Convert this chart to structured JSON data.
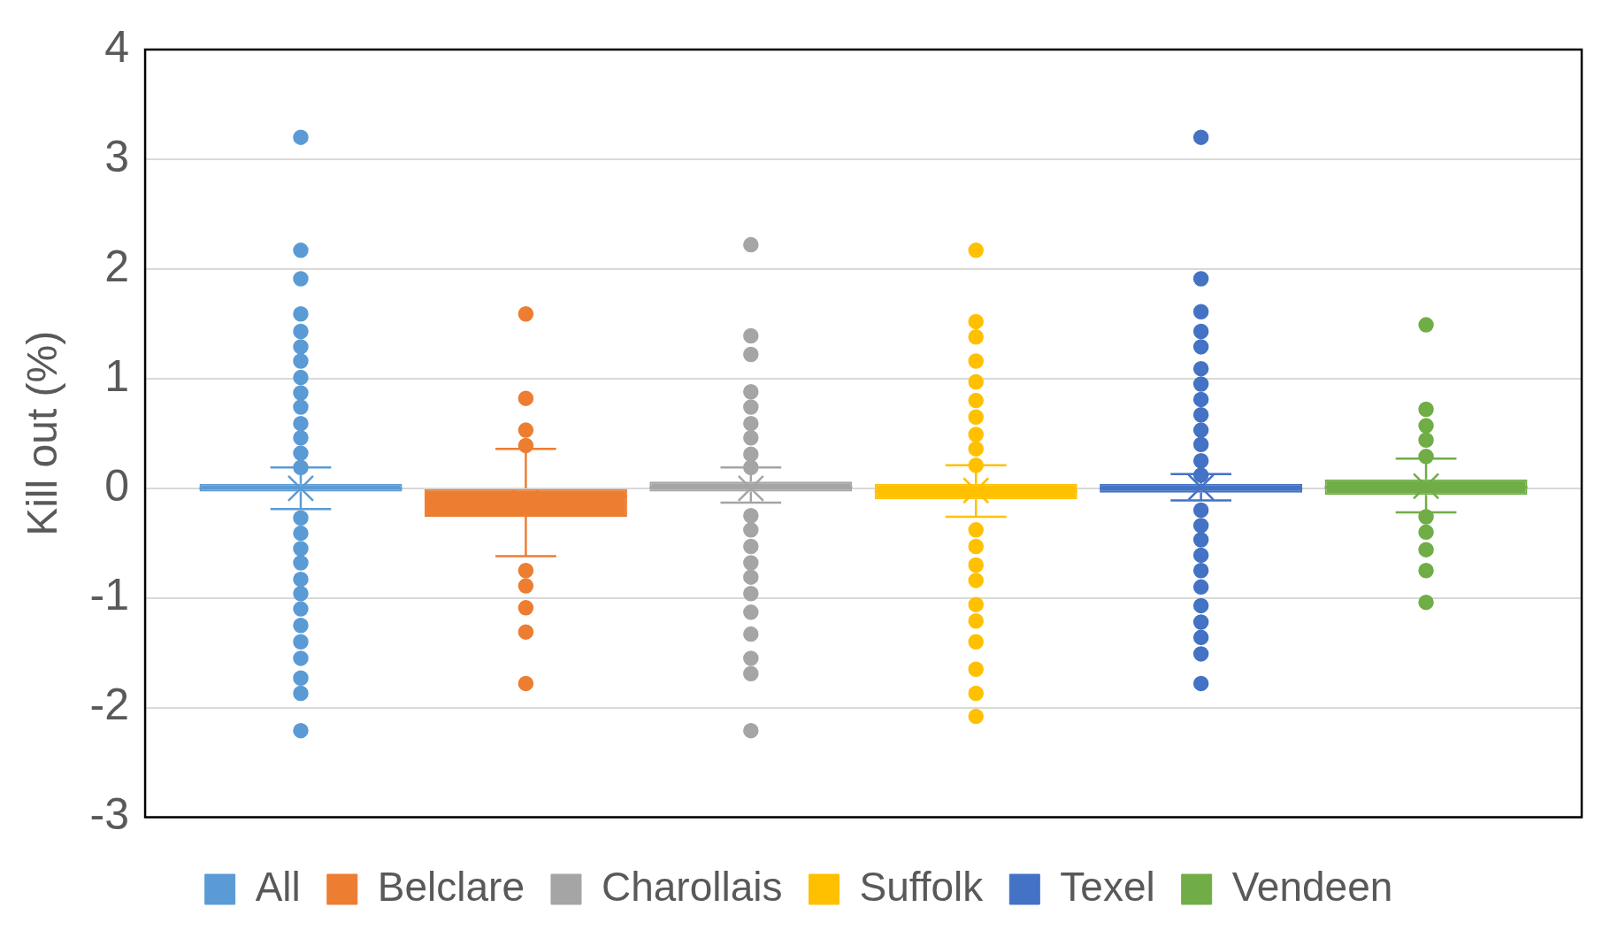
{
  "chart_data": {
    "type": "box",
    "ylabel": "Kill out (%)",
    "categories": [
      null
    ],
    "ylim": [
      -3,
      4
    ],
    "yticks": [
      -3,
      -2,
      -1,
      0,
      1,
      2,
      3,
      4
    ],
    "grid": "y",
    "legend": "bottom",
    "series": [
      {
        "name": "All",
        "color": "#5b9bd5",
        "boxes": [
          {
            "low": -0.19,
            "q1": -0.03,
            "median": 0,
            "q3": 0.04,
            "high": 0.19,
            "mean": 0,
            "outliers": [
              3.2,
              2.17,
              1.91,
              1.59,
              1.43,
              1.29,
              1.16,
              1.01,
              0.87,
              0.74,
              0.59,
              0.46,
              0.32,
              0.19,
              -0.27,
              -0.41,
              -0.55,
              -0.68,
              -0.83,
              -0.96,
              -1.1,
              -1.25,
              -1.4,
              -1.55,
              -1.73,
              -1.87,
              -2.21
            ]
          }
        ]
      },
      {
        "name": "Belclare",
        "color": "#ed7d31",
        "boxes": [
          {
            "low": -0.62,
            "q1": -0.26,
            "median": -0.07,
            "q3": 0,
            "high": 0.36,
            "mean": -0.13,
            "outliers": [
              1.59,
              0.82,
              0.53,
              0.39,
              -0.75,
              -0.89,
              -1.09,
              -1.31,
              -1.78
            ]
          }
        ]
      },
      {
        "name": "Charollais",
        "color": "#a5a5a5",
        "boxes": [
          {
            "low": -0.13,
            "q1": -0.03,
            "median": 0.01,
            "q3": 0.06,
            "high": 0.19,
            "mean": 0,
            "outliers": [
              2.22,
              1.39,
              1.22,
              0.88,
              0.74,
              0.59,
              0.46,
              0.31,
              0.19,
              -0.25,
              -0.38,
              -0.53,
              -0.68,
              -0.81,
              -0.96,
              -1.13,
              -1.33,
              -1.55,
              -1.69,
              -2.21
            ]
          }
        ]
      },
      {
        "name": "Suffolk",
        "color": "#ffc000",
        "boxes": [
          {
            "low": -0.26,
            "q1": -0.1,
            "median": -0.03,
            "q3": 0.04,
            "high": 0.21,
            "mean": -0.02,
            "outliers": [
              2.17,
              1.52,
              1.38,
              1.16,
              0.97,
              0.8,
              0.65,
              0.49,
              0.36,
              0.21,
              -0.38,
              -0.53,
              -0.7,
              -0.84,
              -1.06,
              -1.21,
              -1.4,
              -1.65,
              -1.87,
              -2.08
            ]
          }
        ]
      },
      {
        "name": "Texel",
        "color": "#4472c4",
        "boxes": [
          {
            "low": -0.11,
            "q1": -0.04,
            "median": 0,
            "q3": 0.04,
            "high": 0.13,
            "mean": 0.01,
            "outliers": [
              3.2,
              1.91,
              1.61,
              1.43,
              1.29,
              1.09,
              0.95,
              0.81,
              0.67,
              0.53,
              0.4,
              0.25,
              0.12,
              -0.2,
              -0.34,
              -0.47,
              -0.61,
              -0.75,
              -0.9,
              -1.07,
              -1.22,
              -1.36,
              -1.51,
              -1.78
            ]
          }
        ]
      },
      {
        "name": "Vendeen",
        "color": "#70ad47",
        "boxes": [
          {
            "low": -0.22,
            "q1": -0.06,
            "median": 0.01,
            "q3": 0.08,
            "high": 0.27,
            "mean": 0.02,
            "outliers": [
              1.49,
              0.72,
              0.57,
              0.44,
              0.29,
              -0.26,
              -0.4,
              -0.56,
              -0.75,
              -1.04
            ]
          }
        ]
      }
    ]
  }
}
